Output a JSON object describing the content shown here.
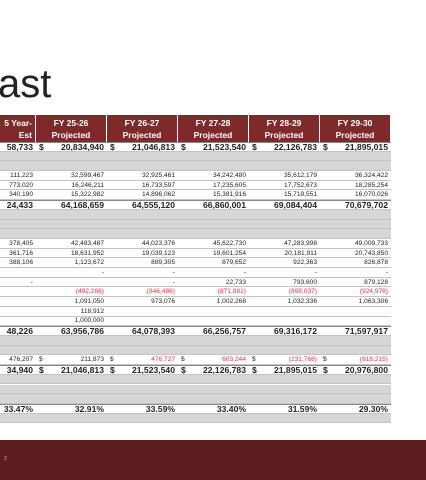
{
  "header": {
    "title": "ast"
  },
  "table": {
    "columns": [
      [
        "5 Year-",
        "Est"
      ],
      [
        "FY 25-26",
        "Projected"
      ],
      [
        "FY 26-27",
        "Projected"
      ],
      [
        "FY 27-28",
        "Projected"
      ],
      [
        "FY 28-29",
        "Projected"
      ],
      [
        "FY 29-30",
        "Projected"
      ]
    ],
    "rows": [
      {
        "bold": true,
        "cells": [
          "58,733",
          {
            "cur": "$",
            "amount": "20,834,940"
          },
          {
            "cur": "$",
            "amount": "21,046,813"
          },
          {
            "cur": "$",
            "amount": "21,523,540"
          },
          {
            "cur": "$",
            "amount": "22,126,783"
          },
          {
            "cur": "$",
            "amount": "21,895,015"
          }
        ]
      },
      null,
      null,
      {
        "cells": [
          "111,223",
          "32,599,467",
          "32,925,461",
          "34,242,480",
          "35,612,179",
          "36,324,422"
        ]
      },
      {
        "cells": [
          "773,020",
          "16,246,211",
          "16,733,597",
          "17,235,605",
          "17,752,673",
          "18,285,254"
        ]
      },
      {
        "cells": [
          "340,190",
          "15,322,982",
          "14,896,062",
          "15,381,916",
          "15,719,551",
          "16,070,026"
        ]
      },
      {
        "bold": true,
        "cells": [
          "24,433",
          "64,168,659",
          "64,555,120",
          "66,860,001",
          "69,084,404",
          "70,679,702"
        ]
      },
      null,
      null,
      null,
      {
        "cells": [
          "378,405",
          "42,483,487",
          "44,023,376",
          "45,622,730",
          "47,283,998",
          "49,009,733"
        ]
      },
      {
        "cells": [
          "361,716",
          "18,631,952",
          "19,039,123",
          "19,601,254",
          "20,181,911",
          "20,743,850"
        ]
      },
      {
        "cells": [
          "388,106",
          "1,123,672",
          "889,305",
          "879,652",
          "922,363",
          "826,878"
        ]
      },
      {
        "cells": [
          null,
          "-",
          "-",
          "-",
          "-",
          "-"
        ]
      },
      {
        "cells": [
          "-",
          null,
          "-",
          "22,733",
          "793,600",
          "879,128"
        ]
      },
      {
        "red": true,
        "cells": [
          null,
          "(492,286)",
          "(846,486)",
          "(871,881)",
          "(898,037)",
          "(924,978)"
        ]
      },
      {
        "cells": [
          null,
          "1,091,050",
          "973,076",
          "1,002,268",
          "1,032,336",
          "1,063,306"
        ]
      },
      {
        "cells": [
          null,
          "118,912",
          null,
          null,
          null,
          null
        ]
      },
      {
        "cells": [
          null,
          "1,000,000",
          null,
          null,
          null,
          null
        ]
      },
      {
        "bold": true,
        "cells": [
          "48,226",
          "63,956,786",
          "64,078,393",
          "66,256,757",
          "69,316,172",
          "71,597,917"
        ]
      },
      null,
      null,
      {
        "cells": [
          "476,207",
          {
            "cur": "$",
            "amount": "211,873"
          },
          {
            "cur": "$",
            "amount": "476,727",
            "red": true
          },
          {
            "cur": "$",
            "amount": "603,244",
            "red": true
          },
          {
            "cur": "$",
            "amount": "(231,768)",
            "red": true
          },
          {
            "cur": "$",
            "amount": "(918,215)",
            "red": true
          }
        ]
      },
      {
        "bold": true,
        "cells": [
          "34,940",
          {
            "cur": "$",
            "amount": "21,046,813"
          },
          {
            "cur": "$",
            "amount": "21,523,540"
          },
          {
            "cur": "$",
            "amount": "22,126,783"
          },
          {
            "cur": "$",
            "amount": "21,895,015"
          },
          {
            "cur": "$",
            "amount": "20,976,800"
          }
        ]
      },
      null,
      null,
      null,
      {
        "bold": true,
        "cells": [
          "33.47%",
          "32.91%",
          "33.59%",
          "33.40%",
          "31.59%",
          "29.30%"
        ]
      },
      null
    ]
  },
  "footer": {
    "page_number": "2"
  }
}
